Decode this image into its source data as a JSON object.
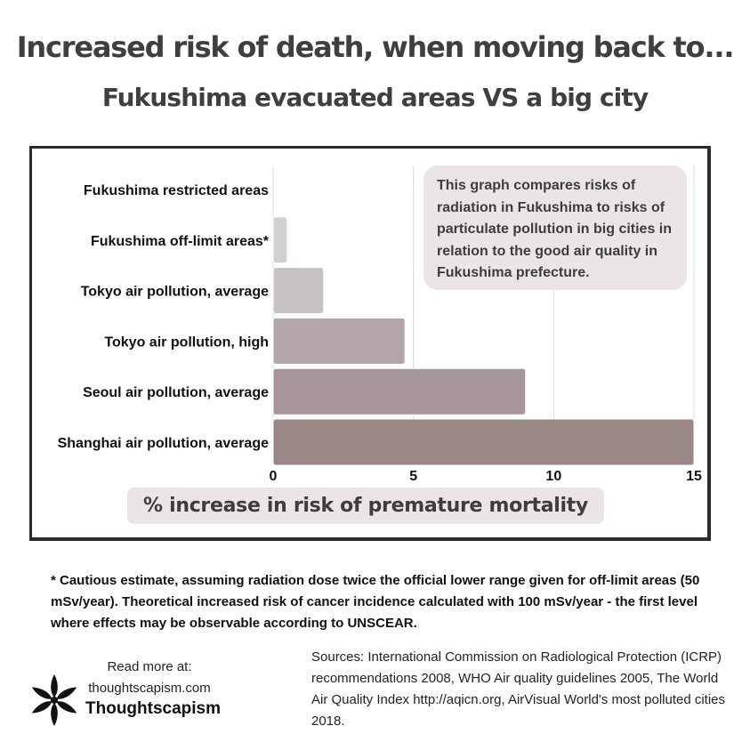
{
  "header": {
    "title": "Increased risk of death, when moving back to...",
    "subtitle": "Fukushima evacuated areas VS a big city"
  },
  "chart_data": {
    "type": "bar",
    "orientation": "horizontal",
    "categories": [
      "Fukushima restricted areas",
      "Fukushima off-limit areas*",
      "Tokyo air pollution, average",
      "Tokyo air pollution, high",
      "Seoul air pollution, average",
      "Shanghai air pollution, average"
    ],
    "values": [
      0,
      0.5,
      1.8,
      4.7,
      9,
      15
    ],
    "bar_colors": [
      "#dcd8d9",
      "#d3d0d2",
      "#c7c2c6",
      "#b3a6aa",
      "#a69699",
      "#9b8785"
    ],
    "xticks": [
      "0",
      "5",
      "10",
      "15"
    ],
    "xlim": [
      0,
      15
    ],
    "xlabel": "% increase in risk of premature mortality",
    "grid": "vertical",
    "annotation": "This graph compares risks of radiation in Fukushima to risks of particulate pollution in big cities in relation to the good air quality in Fukushima prefecture."
  },
  "footnote": "* Cautious estimate, assuming radiation dose twice the official lower range given for off-limit areas (50 mSv/year). Theoretical increased risk of cancer incidence calculated with 100 mSv/year - the first level where effects may be observable according to UNSCEAR.",
  "footer": {
    "read_more_label": "Read more at:",
    "read_more_url": "thoughtscapism.com",
    "brand": "Thoughtscapism",
    "logo_icon": "flower-logo-icon",
    "sources": "Sources: International Commission on Radiological Protection (ICRP) recommendations 2008, WHO Air quality guidelines 2005, The World Air Quality Index http://aqicn.org, AirVisual World's most polluted cities 2018."
  }
}
